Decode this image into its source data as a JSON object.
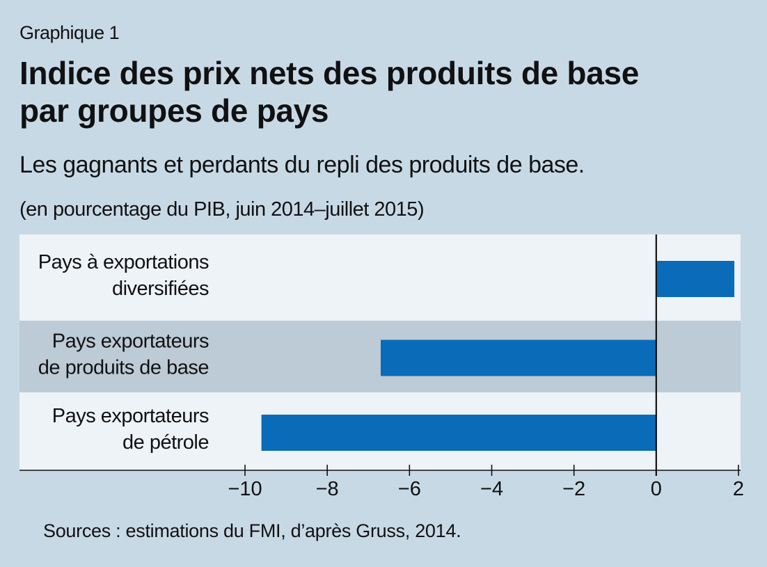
{
  "header": {
    "label": "Graphique 1",
    "title_line1": "Indice des prix nets des produits de base",
    "title_line2": "par groupes de pays",
    "subtitle": "Les gagnants et perdants du repli des produits de base.",
    "units": "(en pourcentage du PIB, juin 2014–juillet 2015)"
  },
  "footer": {
    "source": "Sources : estimations du FMI, d’après Gruss, 2014."
  },
  "colors": {
    "background": "#c8d9e6",
    "band_light": "#eef3f8",
    "band_dark": "#bccbd6",
    "bar": "#0a6bb8"
  },
  "chart_data": {
    "type": "bar",
    "orientation": "horizontal",
    "categories": [
      [
        "Pays à exportations",
        "diversifiées"
      ],
      [
        "Pays exportateurs",
        "de produits de base"
      ],
      [
        "Pays exportateurs",
        "de pétrole"
      ]
    ],
    "values": [
      1.9,
      -6.7,
      -9.6
    ],
    "xlim": [
      -10,
      2
    ],
    "xticks": [
      -10,
      -8,
      -6,
      -4,
      -2,
      0,
      2
    ],
    "xtick_labels": [
      "−10",
      "−8",
      "−6",
      "−4",
      "−2",
      "0",
      "2"
    ],
    "grid": false,
    "legend": "none"
  }
}
